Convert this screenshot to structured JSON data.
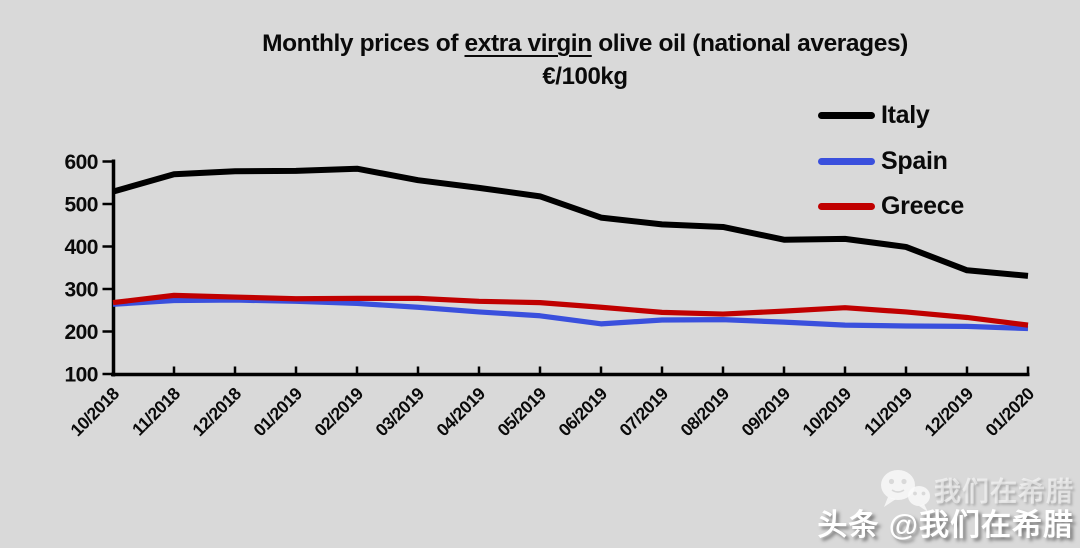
{
  "page": {
    "background": "#d9d9d9"
  },
  "title": {
    "prefix": "Monthly prices of ",
    "underlined": "extra virgin",
    "suffix": " olive oil (national averages)",
    "subtitle": "€/100kg"
  },
  "watermark": {
    "icon": "wechat-icon",
    "line1": "我们在希腊",
    "line2": "头条 @我们在希腊"
  },
  "chart_data": {
    "type": "line",
    "title": "Monthly prices of extra virgin olive oil (national averages)",
    "subtitle": "€/100kg",
    "categories": [
      "10/2018",
      "11/2018",
      "12/2018",
      "01/2019",
      "02/2019",
      "03/2019",
      "04/2019",
      "05/2019",
      "06/2019",
      "07/2019",
      "08/2019",
      "09/2019",
      "10/2019",
      "11/2019",
      "12/2019",
      "01/2020"
    ],
    "series": [
      {
        "name": "Italy",
        "color": "#000000",
        "values": [
          529,
          570,
          577,
          578,
          583,
          556,
          538,
          518,
          468,
          452,
          446,
          416,
          418,
          399,
          344,
          331
        ]
      },
      {
        "name": "Spain",
        "color": "#3a50dd",
        "values": [
          264,
          273,
          274,
          271,
          266,
          257,
          246,
          237,
          218,
          227,
          228,
          222,
          215,
          213,
          212,
          207
        ]
      },
      {
        "name": "Greece",
        "color": "#c00000",
        "values": [
          268,
          285,
          281,
          277,
          278,
          278,
          271,
          268,
          257,
          245,
          241,
          248,
          256,
          246,
          233,
          215
        ]
      }
    ],
    "yticks": [
      100,
      200,
      300,
      400,
      500,
      600
    ],
    "ylim": [
      100,
      600
    ],
    "grid": false,
    "legend_position": "top-right",
    "axis_color": "#000000",
    "background_color": "#d9d9d9"
  }
}
